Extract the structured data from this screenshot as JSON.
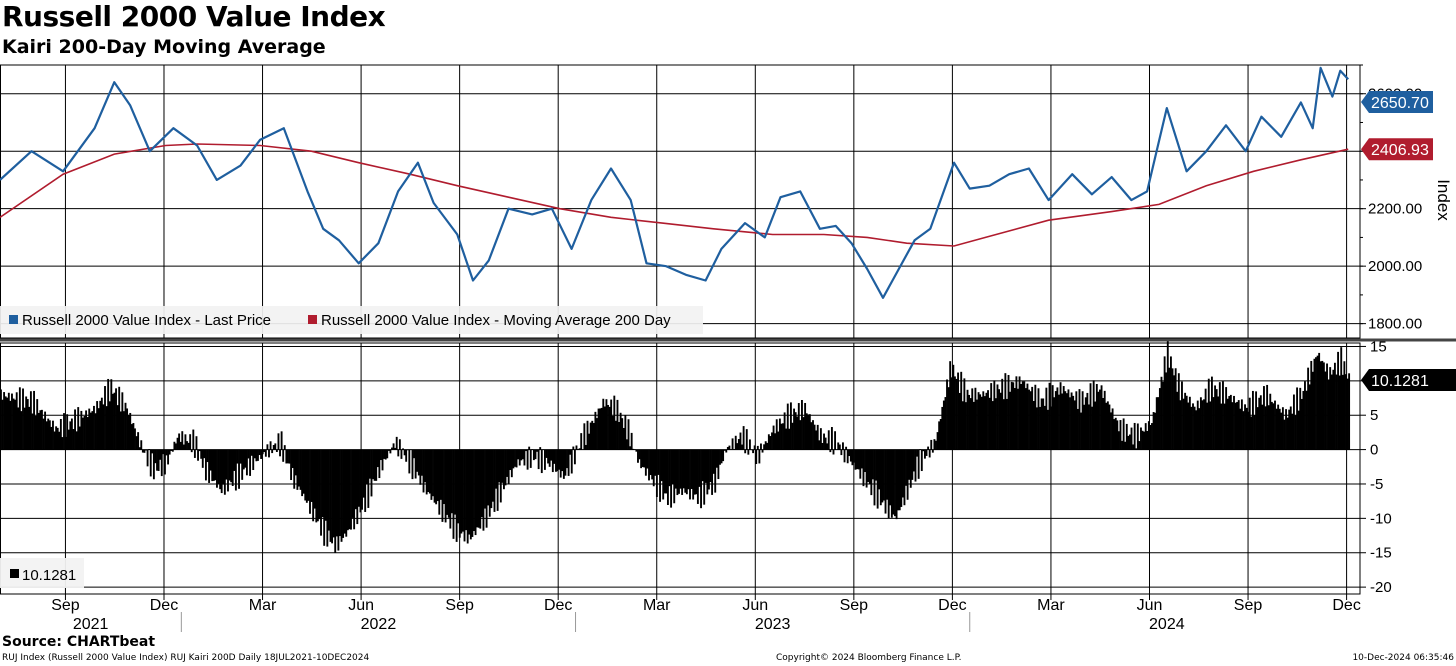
{
  "header": {
    "title": "Russell 2000 Value Index",
    "subtitle": "Kairi 200-Day Moving Average"
  },
  "footer": {
    "source": "Source: CHARTbeat",
    "info_left": "RUJ Index (Russell 2000 Value Index) RUJ Kairi 200D  Daily 18JUL2021-10DEC2024",
    "info_center": "Copyright© 2024 Bloomberg Finance L.P.",
    "info_right": "10-Dec-2024 06:35:46"
  },
  "colors": {
    "price": "#1f5f9f",
    "ma": "#b01c2e",
    "kairi": "#000000",
    "grid": "#000000"
  },
  "chart_data": [
    {
      "type": "line",
      "title": "Russell 2000 Value Index",
      "ylabel": "Index",
      "ylim": [
        1750,
        2700
      ],
      "yticks": [
        1800,
        2000,
        2200,
        2400,
        2600
      ],
      "ytick_labels": [
        "1800.00",
        "2000.00",
        "2200.00",
        "2400.00",
        "2600.00"
      ],
      "legend": {
        "location": "bottom-left"
      },
      "series": [
        {
          "name": "Russell 2000 Value Index - Last Price",
          "last_label": "2650.70",
          "points": [
            [
              2021.54,
              2300
            ],
            [
              2021.62,
              2400
            ],
            [
              2021.7,
              2330
            ],
            [
              2021.78,
              2480
            ],
            [
              2021.83,
              2640
            ],
            [
              2021.87,
              2560
            ],
            [
              2021.92,
              2400
            ],
            [
              2021.98,
              2480
            ],
            [
              2022.04,
              2420
            ],
            [
              2022.09,
              2300
            ],
            [
              2022.15,
              2350
            ],
            [
              2022.2,
              2440
            ],
            [
              2022.26,
              2480
            ],
            [
              2022.32,
              2260
            ],
            [
              2022.36,
              2130
            ],
            [
              2022.4,
              2090
            ],
            [
              2022.45,
              2010
            ],
            [
              2022.5,
              2080
            ],
            [
              2022.55,
              2260
            ],
            [
              2022.6,
              2360
            ],
            [
              2022.64,
              2220
            ],
            [
              2022.7,
              2110
            ],
            [
              2022.74,
              1950
            ],
            [
              2022.78,
              2020
            ],
            [
              2022.83,
              2200
            ],
            [
              2022.89,
              2180
            ],
            [
              2022.94,
              2200
            ],
            [
              2022.99,
              2060
            ],
            [
              2023.04,
              2230
            ],
            [
              2023.09,
              2340
            ],
            [
              2023.14,
              2230
            ],
            [
              2023.18,
              2010
            ],
            [
              2023.23,
              2000
            ],
            [
              2023.28,
              1970
            ],
            [
              2023.33,
              1950
            ],
            [
              2023.37,
              2060
            ],
            [
              2023.43,
              2150
            ],
            [
              2023.48,
              2100
            ],
            [
              2023.52,
              2240
            ],
            [
              2023.57,
              2260
            ],
            [
              2023.62,
              2130
            ],
            [
              2023.66,
              2140
            ],
            [
              2023.7,
              2080
            ],
            [
              2023.74,
              1990
            ],
            [
              2023.78,
              1890
            ],
            [
              2023.82,
              1990
            ],
            [
              2023.86,
              2090
            ],
            [
              2023.9,
              2130
            ],
            [
              2023.96,
              2360
            ],
            [
              2024.0,
              2270
            ],
            [
              2024.05,
              2280
            ],
            [
              2024.1,
              2320
            ],
            [
              2024.15,
              2340
            ],
            [
              2024.2,
              2230
            ],
            [
              2024.26,
              2320
            ],
            [
              2024.31,
              2250
            ],
            [
              2024.36,
              2310
            ],
            [
              2024.41,
              2230
            ],
            [
              2024.45,
              2260
            ],
            [
              2024.5,
              2550
            ],
            [
              2024.55,
              2330
            ],
            [
              2024.6,
              2400
            ],
            [
              2024.65,
              2490
            ],
            [
              2024.7,
              2400
            ],
            [
              2024.74,
              2520
            ],
            [
              2024.79,
              2450
            ],
            [
              2024.84,
              2570
            ],
            [
              2024.87,
              2480
            ],
            [
              2024.89,
              2690
            ],
            [
              2024.92,
              2590
            ],
            [
              2024.94,
              2680
            ],
            [
              2024.96,
              2650.7
            ]
          ]
        },
        {
          "name": "Russell 2000 Value Index - Moving Average 200 Day",
          "last_label": "2406.93",
          "points": [
            [
              2021.54,
              2170
            ],
            [
              2021.7,
              2320
            ],
            [
              2021.83,
              2390
            ],
            [
              2021.96,
              2420
            ],
            [
              2022.04,
              2425
            ],
            [
              2022.2,
              2420
            ],
            [
              2022.33,
              2400
            ],
            [
              2022.45,
              2360
            ],
            [
              2022.58,
              2320
            ],
            [
              2022.7,
              2280
            ],
            [
              2022.83,
              2240
            ],
            [
              2022.96,
              2200
            ],
            [
              2023.09,
              2170
            ],
            [
              2023.22,
              2150
            ],
            [
              2023.35,
              2130
            ],
            [
              2023.5,
              2110
            ],
            [
              2023.63,
              2110
            ],
            [
              2023.74,
              2100
            ],
            [
              2023.84,
              2080
            ],
            [
              2023.96,
              2070
            ],
            [
              2024.04,
              2100
            ],
            [
              2024.2,
              2160
            ],
            [
              2024.36,
              2190
            ],
            [
              2024.48,
              2215
            ],
            [
              2024.6,
              2280
            ],
            [
              2024.72,
              2330
            ],
            [
              2024.84,
              2370
            ],
            [
              2024.96,
              2406.93
            ]
          ]
        }
      ]
    },
    {
      "type": "bar",
      "title": "RUJ Kairi 200D",
      "ylim": [
        -21,
        15.5
      ],
      "yticks": [
        15,
        10,
        5,
        0,
        -5,
        -10,
        -15,
        -20
      ],
      "ytick_labels": [
        "15",
        "10",
        "5",
        "0",
        "-5",
        "-10",
        "-15",
        "-20"
      ],
      "legend": {
        "location": "bottom-left"
      },
      "series": [
        {
          "name": "10.1281",
          "last_label": "10.1281",
          "points": [
            [
              2021.54,
              8
            ],
            [
              2021.62,
              7
            ],
            [
              2021.68,
              3
            ],
            [
              2021.72,
              4
            ],
            [
              2021.78,
              6
            ],
            [
              2021.82,
              9
            ],
            [
              2021.86,
              6
            ],
            [
              2021.9,
              0
            ],
            [
              2021.93,
              -3
            ],
            [
              2021.96,
              -2
            ],
            [
              2021.99,
              2
            ],
            [
              2022.03,
              1
            ],
            [
              2022.06,
              -3
            ],
            [
              2022.1,
              -6
            ],
            [
              2022.14,
              -4
            ],
            [
              2022.18,
              -2
            ],
            [
              2022.22,
              0
            ],
            [
              2022.25,
              1
            ],
            [
              2022.28,
              -4
            ],
            [
              2022.32,
              -8
            ],
            [
              2022.36,
              -12
            ],
            [
              2022.39,
              -14
            ],
            [
              2022.42,
              -12
            ],
            [
              2022.46,
              -8
            ],
            [
              2022.5,
              -3
            ],
            [
              2022.54,
              1
            ],
            [
              2022.58,
              -2
            ],
            [
              2022.62,
              -6
            ],
            [
              2022.66,
              -9
            ],
            [
              2022.7,
              -12
            ],
            [
              2022.73,
              -13
            ],
            [
              2022.77,
              -10
            ],
            [
              2022.81,
              -6
            ],
            [
              2022.85,
              -2
            ],
            [
              2022.89,
              -1
            ],
            [
              2022.93,
              -2
            ],
            [
              2022.97,
              -4
            ],
            [
              2023.01,
              1
            ],
            [
              2023.04,
              4
            ],
            [
              2023.07,
              7
            ],
            [
              2023.1,
              6
            ],
            [
              2023.13,
              3
            ],
            [
              2023.16,
              -2
            ],
            [
              2023.2,
              -5
            ],
            [
              2023.23,
              -7
            ],
            [
              2023.27,
              -6
            ],
            [
              2023.31,
              -7
            ],
            [
              2023.35,
              -5
            ],
            [
              2023.38,
              0
            ],
            [
              2023.42,
              2
            ],
            [
              2023.46,
              -1
            ],
            [
              2023.5,
              3
            ],
            [
              2023.54,
              5
            ],
            [
              2023.58,
              6
            ],
            [
              2023.62,
              2
            ],
            [
              2023.66,
              1
            ],
            [
              2023.7,
              -2
            ],
            [
              2023.74,
              -5
            ],
            [
              2023.78,
              -8
            ],
            [
              2023.81,
              -10
            ],
            [
              2023.84,
              -6
            ],
            [
              2023.87,
              -2
            ],
            [
              2023.91,
              1
            ],
            [
              2023.95,
              12
            ],
            [
              2023.99,
              8
            ],
            [
              2024.03,
              8
            ],
            [
              2024.08,
              9
            ],
            [
              2024.13,
              10
            ],
            [
              2024.18,
              7
            ],
            [
              2024.23,
              9
            ],
            [
              2024.28,
              7
            ],
            [
              2024.33,
              9
            ],
            [
              2024.38,
              3
            ],
            [
              2024.42,
              2
            ],
            [
              2024.46,
              4
            ],
            [
              2024.5,
              14
            ],
            [
              2024.53,
              9
            ],
            [
              2024.57,
              6
            ],
            [
              2024.61,
              9
            ],
            [
              2024.65,
              8
            ],
            [
              2024.7,
              6
            ],
            [
              2024.75,
              8
            ],
            [
              2024.8,
              5
            ],
            [
              2024.84,
              8
            ],
            [
              2024.88,
              14
            ],
            [
              2024.91,
              11
            ],
            [
              2024.94,
              13
            ],
            [
              2024.96,
              10.1281
            ]
          ]
        }
      ]
    }
  ],
  "x_axis": {
    "range": [
      2021.54,
      2024.99
    ],
    "months": [
      {
        "label": "Sep",
        "x": 2021.706
      },
      {
        "label": "Dec",
        "x": 2021.956
      },
      {
        "label": "Mar",
        "x": 2022.206
      },
      {
        "label": "Jun",
        "x": 2022.456
      },
      {
        "label": "Sep",
        "x": 2022.706
      },
      {
        "label": "Dec",
        "x": 2022.956
      },
      {
        "label": "Mar",
        "x": 2023.206
      },
      {
        "label": "Jun",
        "x": 2023.456
      },
      {
        "label": "Sep",
        "x": 2023.706
      },
      {
        "label": "Dec",
        "x": 2023.956
      },
      {
        "label": "Mar",
        "x": 2024.206
      },
      {
        "label": "Jun",
        "x": 2024.456
      },
      {
        "label": "Sep",
        "x": 2024.706
      },
      {
        "label": "Dec",
        "x": 2024.956
      }
    ],
    "years": [
      {
        "label": "2021",
        "x": 2021.77
      },
      {
        "label": "2022",
        "x": 2022.5
      },
      {
        "label": "2023",
        "x": 2023.5
      },
      {
        "label": "2024",
        "x": 2024.5
      }
    ],
    "year_boundaries": [
      2022.0,
      2023.0,
      2024.0
    ]
  }
}
